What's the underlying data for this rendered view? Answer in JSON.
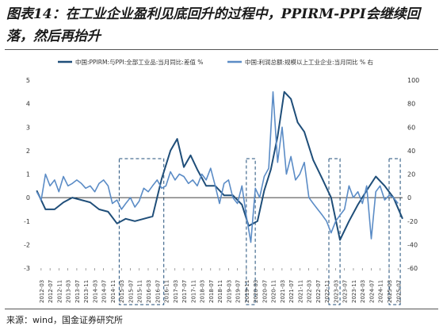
{
  "title": "图表14：在工业企业盈利见底回升的过程中，PPIRM-PPI会继续回落，然后再抬升",
  "source": "来源：wind，国金证券研究所",
  "chart_data": {
    "type": "line",
    "legend_position": "top",
    "grid": false,
    "left_axis": {
      "ylim": [
        -3,
        5
      ],
      "ticks": [
        5,
        4,
        3,
        2,
        1,
        0,
        -1,
        -2,
        -3
      ]
    },
    "right_axis": {
      "ylim": [
        -60,
        100
      ],
      "ticks": [
        100,
        80,
        60,
        40,
        20,
        0,
        -20,
        -40,
        -60
      ]
    },
    "x_ticks": [
      "2012-03",
      "2012-07",
      "2012-11",
      "2013-03",
      "2013-07",
      "2013-11",
      "2014-03",
      "2014-07",
      "2014-11",
      "2015-03",
      "2015-07",
      "2015-11",
      "2016-03",
      "2016-07",
      "2016-11",
      "2017-03",
      "2017-07",
      "2017-11",
      "2018-03",
      "2018-07",
      "2018-11",
      "2019-03",
      "2019-07",
      "2019-11",
      "2020-03",
      "2020-07",
      "2020-11",
      "2021-03",
      "2021-07",
      "2021-11",
      "2022-03",
      "2022-07",
      "2022-11",
      "2023-03",
      "2023-07",
      "2023-11",
      "2024-03",
      "2024-07",
      "2024-11",
      "2025-03",
      "2025-07"
    ],
    "series": [
      {
        "name": "中国:PPIRM:与PPI:全部工业品:当月同比:差值 %",
        "axis": "left",
        "color": "#1f4e79",
        "x": [
          2012.0,
          2012.33,
          2012.67,
          2013.0,
          2013.33,
          2013.67,
          2014.0,
          2014.33,
          2014.67,
          2015.0,
          2015.33,
          2015.67,
          2016.0,
          2016.33,
          2016.67,
          2017.0,
          2017.25,
          2017.5,
          2017.75,
          2018.0,
          2018.33,
          2018.67,
          2019.0,
          2019.33,
          2019.67,
          2019.92,
          2020.25,
          2020.5,
          2020.75,
          2021.0,
          2021.25,
          2021.5,
          2021.75,
          2022.0,
          2022.33,
          2022.67,
          2023.0,
          2023.33,
          2023.67,
          2024.0,
          2024.33,
          2024.67,
          2025.0,
          2025.33,
          2025.67
        ],
        "values": [
          0.3,
          -0.5,
          -0.5,
          -0.2,
          0.0,
          -0.1,
          -0.2,
          -0.5,
          -0.6,
          -1.1,
          -0.9,
          -1.0,
          -0.9,
          -0.8,
          0.8,
          2.0,
          2.5,
          1.3,
          1.8,
          1.2,
          0.5,
          0.5,
          0.1,
          0.1,
          -0.3,
          -1.2,
          -1.0,
          0.3,
          1.2,
          2.6,
          4.5,
          4.2,
          3.2,
          2.8,
          1.6,
          0.8,
          0.0,
          -1.8,
          -1.0,
          -0.3,
          0.3,
          0.9,
          0.5,
          0.0,
          -0.9
        ]
      },
      {
        "name": "中国:利润总额:规模以上工业企业:当月同比 % 右",
        "axis": "right",
        "color": "#5b8cc6",
        "x": [
          2012.0,
          2012.17,
          2012.33,
          2012.5,
          2012.67,
          2012.83,
          2013.0,
          2013.17,
          2013.33,
          2013.5,
          2013.67,
          2013.83,
          2014.0,
          2014.17,
          2014.33,
          2014.5,
          2014.67,
          2014.83,
          2015.0,
          2015.17,
          2015.33,
          2015.5,
          2015.67,
          2015.83,
          2016.0,
          2016.17,
          2016.33,
          2016.5,
          2016.67,
          2016.83,
          2017.0,
          2017.17,
          2017.33,
          2017.5,
          2017.67,
          2017.83,
          2018.0,
          2018.17,
          2018.33,
          2018.5,
          2018.67,
          2018.83,
          2019.0,
          2019.17,
          2019.33,
          2019.5,
          2019.67,
          2019.83,
          2020.0,
          2020.17,
          2020.33,
          2020.5,
          2020.67,
          2020.83,
          2021.0,
          2021.17,
          2021.33,
          2021.5,
          2021.67,
          2021.83,
          2022.0,
          2022.17,
          2022.33,
          2022.5,
          2022.67,
          2022.83,
          2023.0,
          2023.17,
          2023.33,
          2023.5,
          2023.67,
          2023.83,
          2024.0,
          2024.17,
          2024.33,
          2024.5,
          2024.67,
          2024.83,
          2025.0,
          2025.17,
          2025.33,
          2025.5
        ],
        "values": [
          5,
          -2,
          20,
          10,
          15,
          5,
          18,
          10,
          12,
          15,
          12,
          8,
          10,
          5,
          12,
          15,
          10,
          -5,
          -2,
          -10,
          -5,
          0,
          -8,
          -3,
          8,
          5,
          10,
          15,
          8,
          10,
          22,
          15,
          20,
          18,
          12,
          15,
          10,
          20,
          15,
          25,
          10,
          -5,
          12,
          15,
          0,
          -5,
          10,
          -15,
          -38,
          8,
          0,
          18,
          25,
          90,
          30,
          60,
          20,
          35,
          15,
          20,
          30,
          0,
          -5,
          -10,
          -15,
          -20,
          -30,
          -20,
          -15,
          -10,
          10,
          0,
          5,
          -5,
          10,
          -35,
          5,
          10,
          -2,
          2,
          0,
          -5
        ]
      }
    ],
    "highlight_ranges": [
      {
        "x0": "2015-02",
        "x1": "2016-10"
      },
      {
        "x0": "2019-11",
        "x1": "2020-03"
      },
      {
        "x0": "2022-12",
        "x1": "2023-05"
      },
      {
        "x0": "2025-03",
        "x1": "2025-08"
      }
    ]
  }
}
